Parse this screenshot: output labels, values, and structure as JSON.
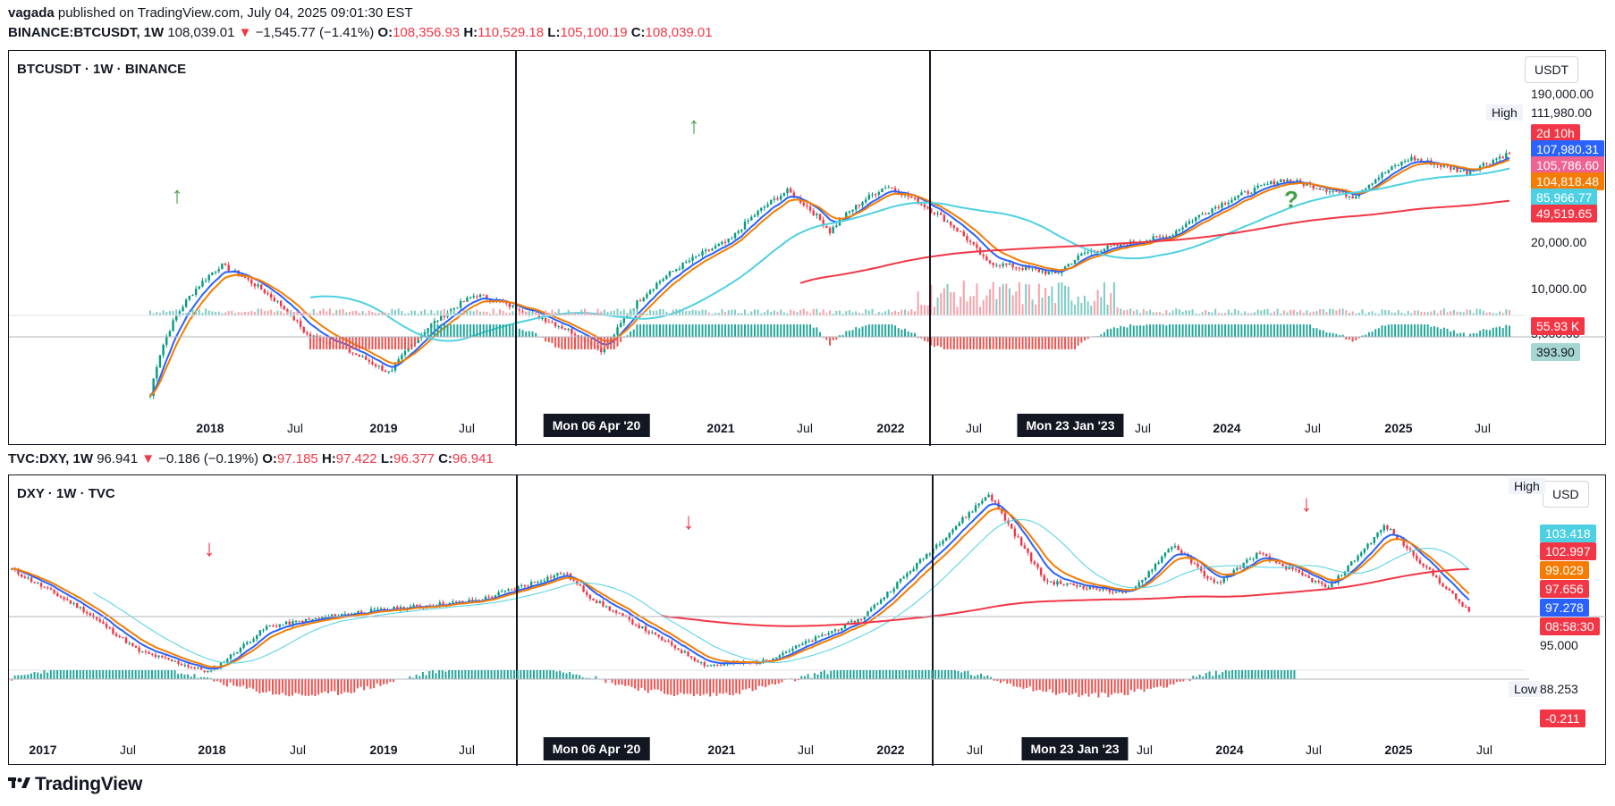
{
  "publish_line": {
    "user": "vagada",
    "rest": "published on TradingView.com, July 04, 2025 09:01:30 EST"
  },
  "btc_header": {
    "symbol": "BINANCE:BTCUSDT, 1W",
    "last": "108,039.01",
    "arrow": "▼",
    "change": "−1,545.77 (−1.41%)",
    "o_label": "O:",
    "o": "108,356.93",
    "h_label": "H:",
    "h": "110,529.18",
    "l_label": "L:",
    "l": "105,100.19",
    "c_label": "C:",
    "c": "108,039.01"
  },
  "dxy_header": {
    "symbol": "TVC:DXY, 1W",
    "last": "96.941",
    "arrow": "▼",
    "change": "−0.186 (−0.19%)",
    "o_label": "O:",
    "o": "97.185",
    "h_label": "H:",
    "h": "97.422",
    "l_label": "L:",
    "l": "96.377",
    "c_label": "C:",
    "c": "96.941"
  },
  "btc_panel": {
    "title": "BTCUSDT · 1W · BINANCE",
    "currency": "USDT",
    "high_label": "High",
    "high_value": "111,980.00",
    "scale_labels": [
      "190,000.00",
      "20,000.00",
      "10,000.00",
      "5,000.00"
    ],
    "price_labels": [
      {
        "text": "2d 10h",
        "color": "#f23645"
      },
      {
        "text": "107,980.31",
        "color": "#2962ff"
      },
      {
        "text": "105,786.60",
        "color": "#f06292"
      },
      {
        "text": "104,818.48",
        "color": "#f57c00"
      },
      {
        "text": "85,966.77",
        "color": "#4dd0e1"
      },
      {
        "text": "49,519.65",
        "color": "#f23645"
      },
      {
        "text": "55.93 K",
        "color": "#f23645"
      },
      {
        "text": "393.90",
        "color": "#a5d6d1"
      }
    ],
    "xaxis": [
      "2018",
      "Jul",
      "2019",
      "Jul",
      "2021",
      "Jul",
      "2022",
      "Jul",
      "Jul",
      "2024",
      "Jul",
      "2025",
      "Jul"
    ],
    "crosshairs": [
      "Mon 06 Apr '20",
      "Mon 23 Jan '23"
    ],
    "annotations": [
      "↑",
      "↑",
      "↑",
      "?"
    ]
  },
  "dxy_panel": {
    "title": "DXY · 1W · TVC",
    "currency": "USD",
    "high_label": "High",
    "low_label": "Low",
    "low_value": "88.253",
    "scale_labels": [
      "95.000"
    ],
    "price_labels": [
      {
        "text": "103.418",
        "color": "#4dd0e1"
      },
      {
        "text": "102.997",
        "color": "#f23645"
      },
      {
        "text": "99.029",
        "color": "#f57c00"
      },
      {
        "text": "97.656",
        "color": "#f23645"
      },
      {
        "text": "97.278",
        "color": "#2962ff"
      },
      {
        "text": "08:58:30",
        "color": "#f23645"
      },
      {
        "text": "-0.211",
        "color": "#f23645"
      }
    ],
    "xaxis": [
      "2017",
      "Jul",
      "2018",
      "Jul",
      "2019",
      "Jul",
      "2021",
      "Jul",
      "2022",
      "Jul",
      "Jul",
      "2024",
      "Jul",
      "2025",
      "Jul"
    ],
    "crosshairs": [
      "Mon 06 Apr '20",
      "Mon 23 Jan '23"
    ],
    "annotations": [
      "↓",
      "↓",
      "↓"
    ]
  },
  "footer": {
    "brand": "TradingView"
  },
  "colors": {
    "up": "#089981",
    "down": "#f23645",
    "ema_fast": "#2962ff",
    "ema_mid": "#f57c00",
    "ma_slow": "#4dd0e1",
    "ma_long": "#f23645"
  },
  "chart_data": [
    {
      "type": "line",
      "title": "BTCUSDT · 1W · BINANCE",
      "log_scale": true,
      "x": [
        "2017-07",
        "2017-12",
        "2018-06",
        "2018-12",
        "2019-06",
        "2020-03",
        "2020-04",
        "2020-12",
        "2021-04",
        "2021-07",
        "2021-11",
        "2022-06",
        "2022-11",
        "2023-01",
        "2023-07",
        "2024-03",
        "2024-08",
        "2024-12",
        "2025-04",
        "2025-07"
      ],
      "series": [
        {
          "name": "BTCUSDT",
          "values": [
            2500,
            19000,
            6500,
            3500,
            12000,
            5000,
            7000,
            28000,
            60000,
            32000,
            65000,
            20000,
            16500,
            23000,
            30000,
            72000,
            55000,
            100000,
            80000,
            108039
          ]
        }
      ],
      "ylim": [
        1000,
        200000
      ],
      "yticks": [
        5000,
        10000,
        20000,
        190000
      ]
    },
    {
      "type": "line",
      "title": "DXY · 1W · TVC",
      "x": [
        "2016-12",
        "2017-05",
        "2017-09",
        "2018-02",
        "2018-06",
        "2018-12",
        "2019-09",
        "2020-03",
        "2020-05",
        "2021-01",
        "2021-05",
        "2021-12",
        "2022-09",
        "2023-01",
        "2023-07",
        "2023-10",
        "2024-01",
        "2024-04",
        "2024-09",
        "2025-01",
        "2025-07"
      ],
      "series": [
        {
          "name": "DXY",
          "values": [
            103.2,
            97.5,
            91.5,
            88.5,
            95.0,
            97.0,
            98.8,
            102.8,
            99.0,
            89.5,
            90.0,
            96.2,
            114.0,
            101.5,
            99.8,
            106.8,
            101.0,
            105.5,
            100.5,
            109.5,
            96.941
          ]
        }
      ],
      "ylim": [
        86,
        116
      ],
      "yticks": [
        95.0
      ]
    }
  ]
}
